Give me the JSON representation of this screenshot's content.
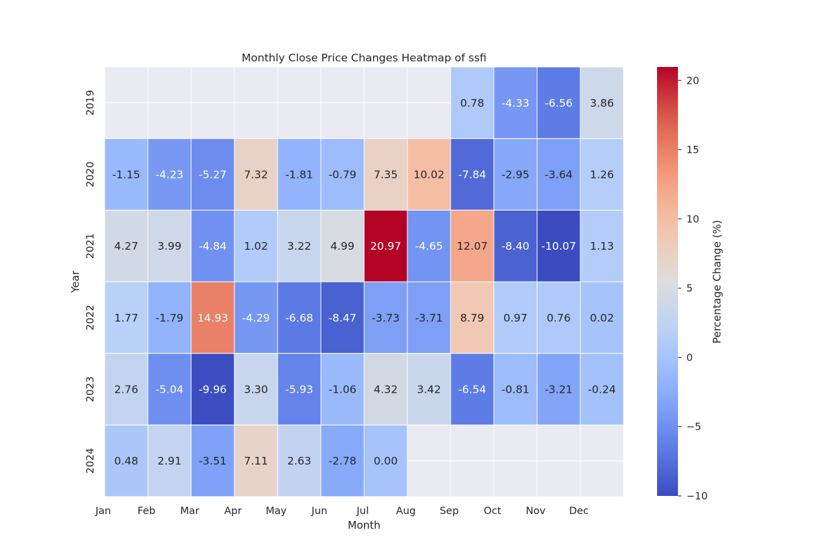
{
  "chart_data": {
    "type": "heatmap",
    "title": "Monthly Close Price Changes Heatmap of ssfi",
    "xlabel": "Month",
    "ylabel": "Year",
    "x_categories": [
      "Jan",
      "Feb",
      "Mar",
      "Apr",
      "May",
      "Jun",
      "Jul",
      "Aug",
      "Sep",
      "Oct",
      "Nov",
      "Dec"
    ],
    "y_categories": [
      "2019",
      "2020",
      "2021",
      "2022",
      "2023",
      "2024"
    ],
    "values": [
      [
        null,
        null,
        null,
        null,
        null,
        null,
        null,
        null,
        0.78,
        -4.33,
        -6.56,
        3.86
      ],
      [
        -1.15,
        -4.23,
        -5.27,
        7.32,
        -1.81,
        -0.79,
        7.35,
        10.02,
        -7.84,
        -2.95,
        -3.64,
        1.26
      ],
      [
        4.27,
        3.99,
        -4.84,
        1.02,
        3.22,
        4.99,
        20.97,
        -4.65,
        12.07,
        -8.4,
        -10.07,
        1.13
      ],
      [
        1.77,
        -1.79,
        14.93,
        -4.29,
        -6.68,
        -8.47,
        -3.73,
        -3.71,
        8.79,
        0.97,
        0.76,
        0.02
      ],
      [
        2.76,
        -5.04,
        -9.96,
        3.3,
        -5.93,
        -1.06,
        4.32,
        3.42,
        -6.54,
        -0.81,
        -3.21,
        -0.24
      ],
      [
        0.48,
        2.91,
        -3.51,
        7.11,
        2.63,
        -2.78,
        0.0,
        null,
        null,
        null,
        null,
        null
      ]
    ],
    "value_labels": [
      [
        "",
        "",
        "",
        "",
        "",
        "",
        "",
        "",
        "0.78",
        "-4.33",
        "-6.56",
        "3.86"
      ],
      [
        "-1.15",
        "-4.23",
        "-5.27",
        "7.32",
        "-1.81",
        "-0.79",
        "7.35",
        "10.02",
        "-7.84",
        "-2.95",
        "-3.64",
        "1.26"
      ],
      [
        "4.27",
        "3.99",
        "-4.84",
        "1.02",
        "3.22",
        "4.99",
        "20.97",
        "-4.65",
        "12.07",
        "-8.40",
        "-10.07",
        "1.13"
      ],
      [
        "1.77",
        "-1.79",
        "14.93",
        "-4.29",
        "-6.68",
        "-8.47",
        "-3.73",
        "-3.71",
        "8.79",
        "0.97",
        "0.76",
        "0.02"
      ],
      [
        "2.76",
        "-5.04",
        "-9.96",
        "3.30",
        "-5.93",
        "-1.06",
        "4.32",
        "3.42",
        "-6.54",
        "-0.81",
        "-3.21",
        "-0.24"
      ],
      [
        "0.48",
        "2.91",
        "-3.51",
        "7.11",
        "2.63",
        "-2.78",
        "0.00",
        "",
        "",
        "",
        "",
        ""
      ]
    ],
    "colorbar": {
      "label": "Percentage Change (%)",
      "min": -10,
      "max": 20.97,
      "ticks": [
        -10,
        -5,
        0,
        5,
        10,
        15,
        20
      ],
      "tick_labels": [
        "−10",
        "−5",
        "0",
        "5",
        "10",
        "15",
        "20"
      ],
      "colormap": "coolwarm"
    },
    "missing_color": "#eaeaf2",
    "grid_color": "#ffffff"
  }
}
